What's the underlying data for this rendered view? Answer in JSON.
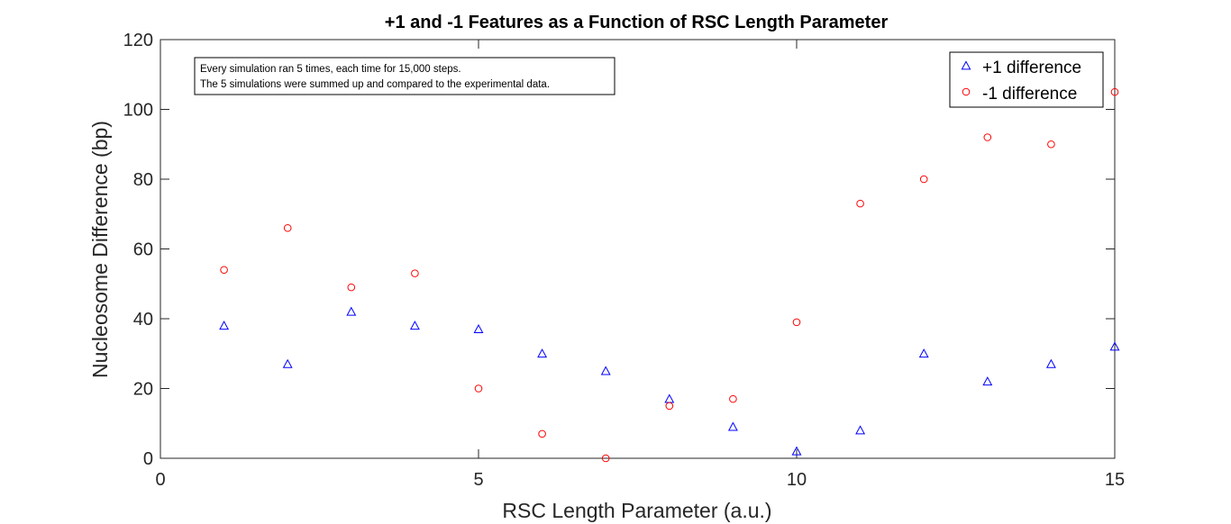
{
  "chart_data": {
    "type": "scatter",
    "title": "+1 and -1 Features as a Function of RSC Length Parameter",
    "xlabel": "RSC Length Parameter (a.u.)",
    "ylabel": "Nucleosome Difference (bp)",
    "xlim": [
      0,
      15
    ],
    "ylim": [
      0,
      120
    ],
    "xticks": [
      "0",
      "5",
      "10",
      "15"
    ],
    "yticks": [
      "0",
      "20",
      "40",
      "60",
      "80",
      "100",
      "120"
    ],
    "grid": false,
    "legend_position": "top-right",
    "annotation": [
      "Every simulation ran 5 times, each time for 15,000 steps.",
      "The 5 simulations were summed up and compared to the experimental data."
    ],
    "series": [
      {
        "name": "+1 difference",
        "marker": "triangle",
        "color": "#0000ff",
        "x": [
          1,
          2,
          3,
          4,
          5,
          6,
          7,
          8,
          9,
          10,
          11,
          12,
          13,
          14,
          15
        ],
        "y": [
          38,
          27,
          42,
          38,
          37,
          30,
          25,
          17,
          9,
          2,
          8,
          30,
          22,
          27,
          32
        ]
      },
      {
        "name": "-1 difference",
        "marker": "circle",
        "color": "#ff0000",
        "x": [
          1,
          2,
          3,
          4,
          5,
          6,
          7,
          8,
          9,
          10,
          11,
          12,
          13,
          14,
          15
        ],
        "y": [
          54,
          66,
          49,
          53,
          20,
          7,
          0,
          15,
          17,
          39,
          73,
          80,
          92,
          90,
          105
        ]
      }
    ]
  }
}
